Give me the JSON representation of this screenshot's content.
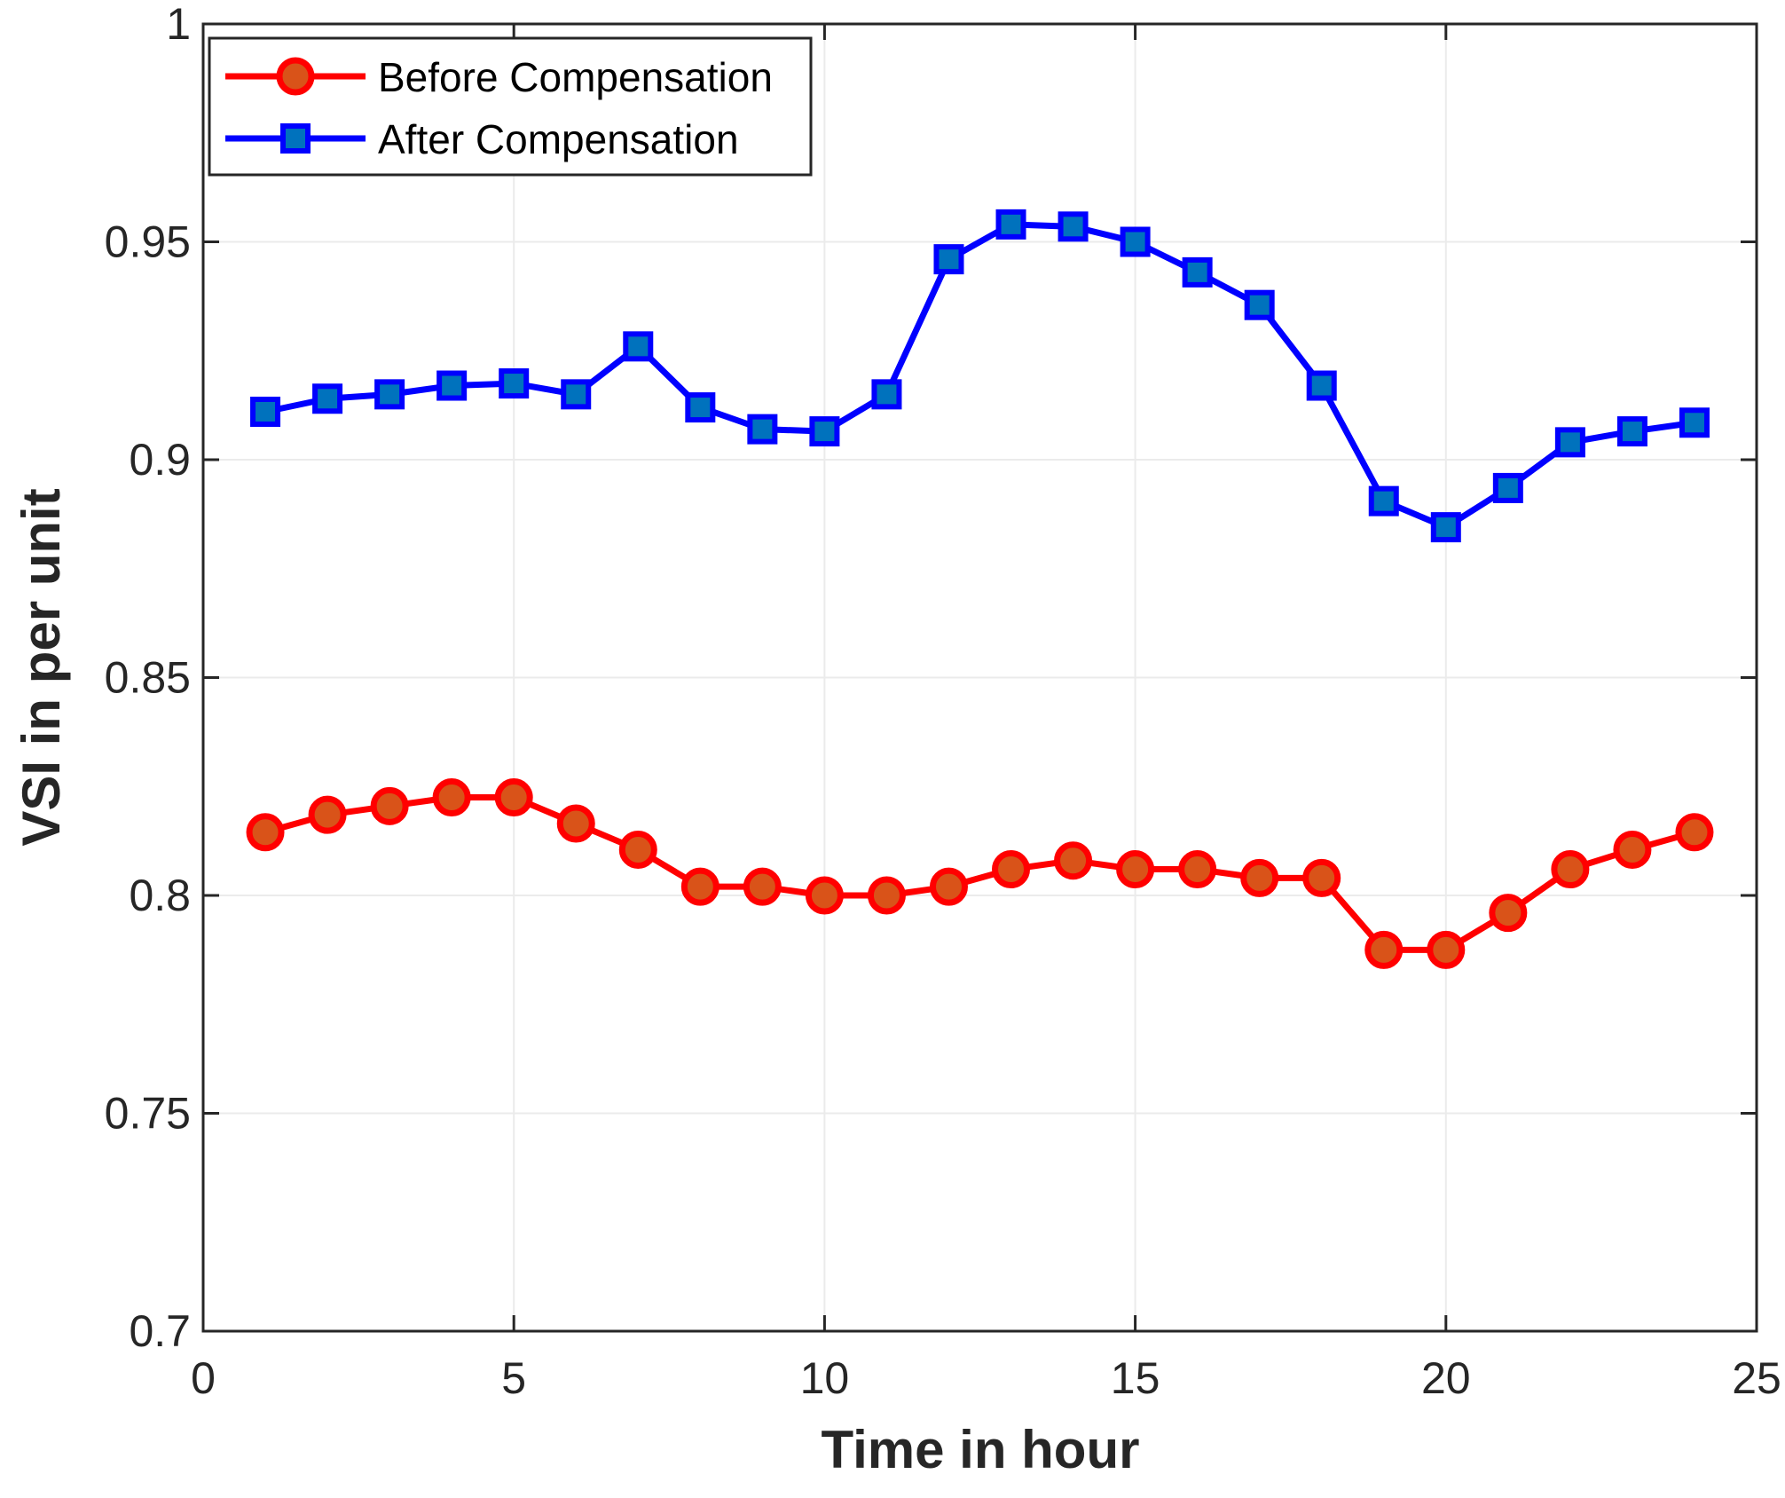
{
  "chart_data": {
    "type": "line",
    "title": "",
    "xlabel": "Time in hour",
    "ylabel": "VSI in per unit",
    "xlim": [
      0,
      25
    ],
    "ylim": [
      0.7,
      1.0
    ],
    "xticks": [
      0,
      5,
      10,
      15,
      20,
      25
    ],
    "yticks": [
      0.7,
      0.75,
      0.8,
      0.85,
      0.9,
      0.95,
      1.0
    ],
    "xtick_labels": [
      "0",
      "5",
      "10",
      "15",
      "20",
      "25"
    ],
    "ytick_labels": [
      "0.7",
      "0.75",
      "0.8",
      "0.85",
      "0.9",
      "0.95",
      "1"
    ],
    "grid": true,
    "legend_position": "top-left",
    "x": [
      1,
      2,
      3,
      4,
      5,
      6,
      7,
      8,
      9,
      10,
      11,
      12,
      13,
      14,
      15,
      16,
      17,
      18,
      19,
      20,
      21,
      22,
      23,
      24
    ],
    "series": [
      {
        "name": "Before Compensation",
        "color": "#ff0000",
        "marker": "circle",
        "marker_fill": "#d95319",
        "values": [
          0.8145,
          0.8185,
          0.8205,
          0.8225,
          0.8225,
          0.8165,
          0.8105,
          0.802,
          0.802,
          0.8,
          0.8,
          0.802,
          0.806,
          0.808,
          0.806,
          0.806,
          0.804,
          0.804,
          0.7875,
          0.7875,
          0.796,
          0.806,
          0.8105,
          0.8145
        ]
      },
      {
        "name": "After Compensation",
        "color": "#0000ff",
        "marker": "square",
        "marker_fill": "#0072bd",
        "values": [
          0.911,
          0.914,
          0.915,
          0.917,
          0.9175,
          0.915,
          0.926,
          0.912,
          0.907,
          0.9065,
          0.915,
          0.946,
          0.954,
          0.9535,
          0.95,
          0.943,
          0.9355,
          0.917,
          0.8905,
          0.8845,
          0.8935,
          0.904,
          0.9065,
          0.9085
        ]
      }
    ]
  }
}
